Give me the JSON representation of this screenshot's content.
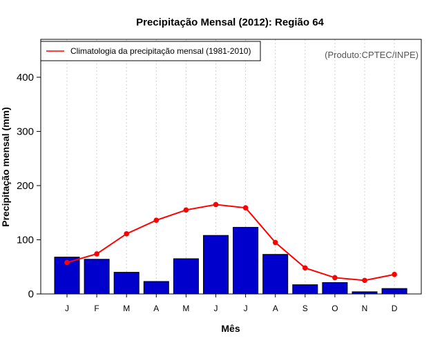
{
  "chart_data": {
    "type": "bar",
    "title": "Precipitação Mensal (2012): Região 64",
    "xlabel": "Mês",
    "ylabel": "Precipitação mensal (mm)",
    "ylim": [
      0,
      470
    ],
    "yticks": [
      0,
      100,
      200,
      300,
      400
    ],
    "categories": [
      "J",
      "F",
      "M",
      "A",
      "M",
      "J",
      "J",
      "A",
      "S",
      "O",
      "N",
      "D"
    ],
    "series": [
      {
        "name": "Precipitação mensal (2012)",
        "type": "bar",
        "color": "#0000cc",
        "values": [
          68,
          64,
          40,
          23,
          65,
          108,
          123,
          73,
          17,
          21,
          4,
          10
        ]
      },
      {
        "name": "Climatologia da precipitação mensal (1981-2010)",
        "type": "line",
        "color": "#ff0000",
        "values": [
          58,
          74,
          111,
          136,
          155,
          165,
          159,
          95,
          48,
          30,
          25,
          36
        ]
      }
    ],
    "legend": {
      "position": "top-left",
      "entries": [
        "Climatologia da precipitação mensal (1981-2010)"
      ]
    },
    "annotation": "(Produto:CPTEC/INPE)",
    "grid": "vertical-dotted"
  }
}
